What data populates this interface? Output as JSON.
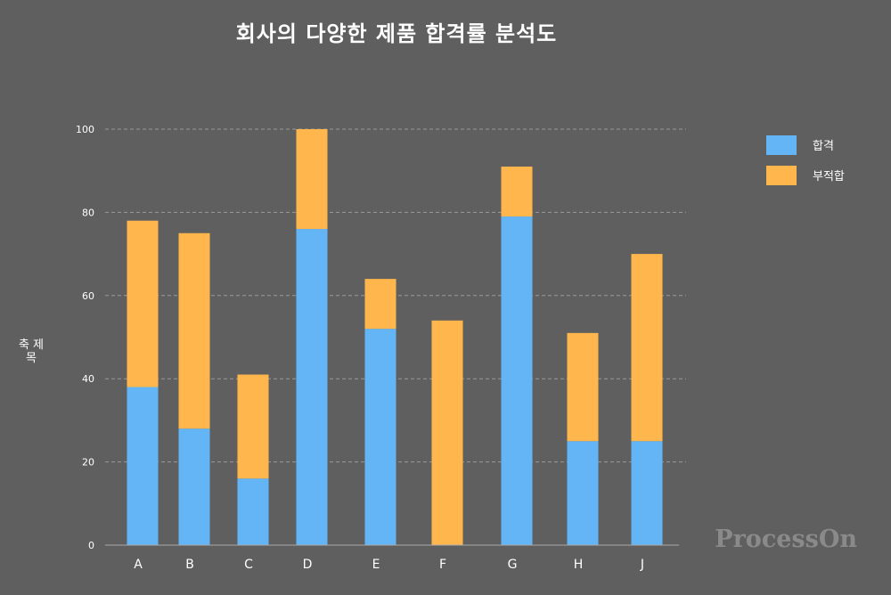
{
  "chart_data": {
    "type": "bar",
    "stacked": true,
    "title": "회사의 다양한 제품 합격률 분석도",
    "xlabel": "",
    "ylabel": "축 제목",
    "ylim": [
      0,
      100
    ],
    "yticks": [
      0,
      20,
      40,
      60,
      80,
      100
    ],
    "grid": true,
    "legend_position": "top-right",
    "categories": [
      "A",
      "B",
      "C",
      "D",
      "E",
      "F",
      "G",
      "H",
      "J"
    ],
    "series": [
      {
        "name": "합격",
        "color": "#64b5f6",
        "values": [
          38,
          28,
          16,
          76,
          52,
          0,
          79,
          25,
          25
        ]
      },
      {
        "name": "부적합",
        "color": "#ffb74d",
        "values": [
          40,
          47,
          25,
          24,
          12,
          54,
          12,
          26,
          45
        ]
      }
    ]
  },
  "watermark": "ProcessOn",
  "colors": {
    "background": "#5f5f5f",
    "grid": "#9a9a9a"
  }
}
